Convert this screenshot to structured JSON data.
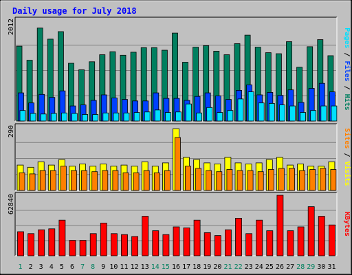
{
  "chart_data": {
    "type": "bar",
    "title": "Daily usage for July 2018",
    "categories": [
      "1",
      "2",
      "3",
      "4",
      "5",
      "6",
      "7",
      "8",
      "9",
      "10",
      "11",
      "12",
      "13",
      "14",
      "15",
      "16",
      "17",
      "18",
      "19",
      "20",
      "21",
      "22",
      "23",
      "24",
      "25",
      "26",
      "27",
      "28",
      "29",
      "30",
      "31"
    ],
    "weekend_days": [
      "1",
      "7",
      "8",
      "14",
      "15",
      "21",
      "22",
      "28",
      "29"
    ],
    "panels": [
      {
        "name": "hits-files-pages",
        "ymax_label": "2012",
        "ymax": 2012,
        "right_label": {
          "pages": "Pages",
          "files": "Files",
          "hits": "Hits",
          "sep": " / "
        },
        "series": [
          {
            "name": "Hits",
            "color": "#007f5f",
            "values": [
              1490,
              1210,
              1850,
              1630,
              1780,
              1150,
              1020,
              1180,
              1320,
              1380,
              1310,
              1370,
              1460,
              1460,
              1410,
              1750,
              1170,
              1470,
              1500,
              1390,
              1320,
              1540,
              1710,
              1470,
              1360,
              1340,
              1580,
              1070,
              1480,
              1620,
              1300
            ]
          },
          {
            "name": "Files",
            "color": "#0040ff",
            "values": [
              560,
              360,
              530,
              470,
              600,
              300,
              320,
              410,
              520,
              460,
              430,
              400,
              400,
              560,
              450,
              450,
              410,
              490,
              560,
              500,
              430,
              610,
              720,
              520,
              570,
              510,
              620,
              370,
              650,
              750,
              580
            ]
          },
          {
            "name": "Pages",
            "color": "#00e0ff",
            "values": [
              210,
              150,
              140,
              150,
              160,
              150,
              130,
              130,
              160,
              160,
              160,
              170,
              180,
              220,
              170,
              180,
              340,
              160,
              270,
              170,
              210,
              440,
              580,
              360,
              350,
              320,
              300,
              170,
              210,
              300,
              300
            ]
          }
        ]
      },
      {
        "name": "visits-sites",
        "ymax_label": "290",
        "ymax": 290,
        "right_label": {
          "sites": "Sites",
          "visits": "Visits",
          "sep": " / "
        },
        "series": [
          {
            "name": "Visits",
            "color": "#ffff00",
            "values": [
              115,
              105,
              130,
              115,
              140,
              110,
              120,
              110,
              120,
              110,
              115,
              110,
              130,
              110,
              125,
              280,
              150,
              140,
              125,
              120,
              150,
              125,
              120,
              125,
              140,
              150,
              115,
              120,
              110,
              110,
              130
            ]
          },
          {
            "name": "Sites",
            "color": "#ff8000",
            "values": [
              80,
              75,
              90,
              90,
              110,
              90,
              90,
              85,
              90,
              90,
              80,
              80,
              90,
              80,
              90,
              240,
              110,
              100,
              90,
              85,
              95,
              90,
              90,
              85,
              95,
              100,
              100,
              90,
              95,
              100,
              95
            ]
          }
        ]
      },
      {
        "name": "kbytes",
        "ymax_label": "62840",
        "ymax": 62840,
        "right_label": {
          "kbytes": "KBytes"
        },
        "series": [
          {
            "name": "KBytes",
            "color": "#ff0000",
            "values": [
              25000,
              23000,
              27000,
              28000,
              37000,
              16000,
              16000,
              23000,
              34000,
              23000,
              22000,
              20000,
              41000,
              26000,
              22000,
              30000,
              29000,
              37000,
              24000,
              21000,
              27000,
              39000,
              23000,
              37000,
              26000,
              62840,
              26000,
              30000,
              51000,
              41000,
              32000
            ]
          }
        ]
      }
    ]
  }
}
